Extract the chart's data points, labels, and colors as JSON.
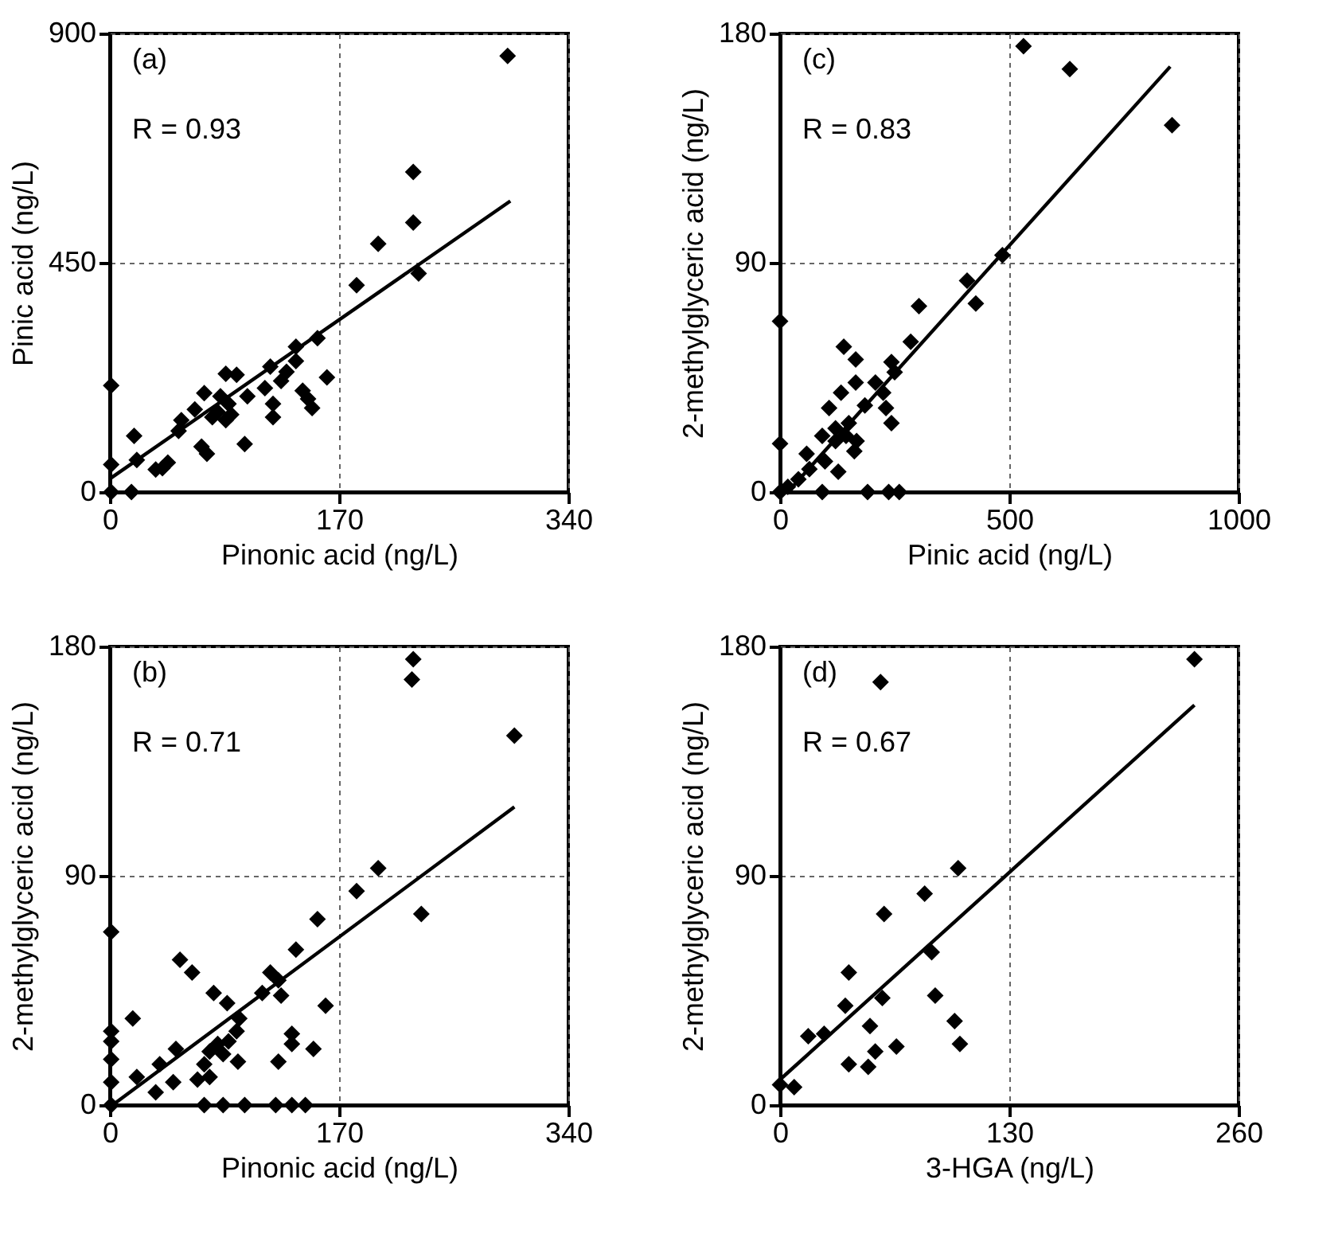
{
  "chart_data": [
    {
      "type": "scatter",
      "xlabel": "Pinonic acid (ng/L)",
      "ylabel": "Pinic acid (ng/L)",
      "xlim": [
        0,
        340
      ],
      "xticks": [
        0,
        170,
        340
      ],
      "ylim": [
        0,
        900
      ],
      "yticks": [
        0,
        450,
        900
      ],
      "grid": true,
      "line_style": "solid",
      "annotations": [
        "(a)",
        "R = 0.93"
      ],
      "series": [
        {
          "marker": "diamond",
          "color": "#000000",
          "x": [
            295,
            225,
            225,
            229,
            199,
            183,
            154,
            138,
            138,
            161,
            119,
            131,
            127,
            115,
            121,
            121,
            143,
            147,
            150,
            86,
            94,
            70,
            82,
            88,
            80,
            86,
            63,
            53,
            51,
            68,
            72,
            100,
            43,
            34,
            39,
            18,
            20,
            1,
            1,
            1,
            16,
            76,
            90,
            102
          ],
          "values": [
            856,
            628,
            529,
            429,
            487,
            406,
            302,
            285,
            257,
            225,
            246,
            236,
            218,
            204,
            173,
            147,
            199,
            183,
            165,
            232,
            230,
            194,
            188,
            173,
            157,
            141,
            162,
            141,
            120,
            89,
            75,
            94,
            58,
            44,
            47,
            110,
            63,
            209,
            54,
            0,
            0,
            147,
            152,
            188
          ]
        },
        {
          "type": "line",
          "marker": "none",
          "color": "#000000",
          "x": [
            0,
            297
          ],
          "values": [
            26,
            571
          ]
        }
      ]
    },
    {
      "type": "scatter",
      "xlabel": "Pinic acid (ng/L)",
      "ylabel": "2-methylglyceric acid (ng/L)",
      "xlim": [
        0,
        1000
      ],
      "xticks": [
        0,
        500,
        1000
      ],
      "ylim": [
        0,
        180
      ],
      "yticks": [
        0,
        90,
        180
      ],
      "grid": true,
      "line_style": "solid",
      "annotations": [
        "(c)",
        "R = 0.83"
      ],
      "series": [
        {
          "marker": "diamond",
          "color": "#000000",
          "x": [
            531,
            632,
            855,
            485,
            408,
            427,
            303,
            285,
            243,
            250,
            139,
            165,
            165,
            208,
            225,
            133,
            107,
            185,
            231,
            243,
            150,
            121,
            144,
            167,
            162,
            121,
            92,
            58,
            127,
            64,
            40,
            17,
            0,
            0,
            0,
            92,
            191,
            237,
            260,
            98
          ],
          "values": [
            175,
            166,
            144,
            93,
            83,
            74,
            73,
            59,
            51,
            47,
            57,
            52,
            43,
            43,
            39,
            39,
            33,
            34,
            33,
            27,
            27,
            25,
            22,
            20,
            16,
            20,
            22,
            15,
            8,
            9,
            5,
            2,
            67,
            19,
            0,
            0,
            0,
            0,
            0,
            12
          ]
        },
        {
          "type": "line",
          "marker": "none",
          "color": "#000000",
          "x": [
            17,
            851
          ],
          "values": [
            0,
            167
          ]
        }
      ]
    },
    {
      "type": "scatter",
      "xlabel": "Pinonic acid (ng/L)",
      "ylabel": "2-methylglyceric acid (ng/L)",
      "xlim": [
        0,
        340
      ],
      "xticks": [
        0,
        170,
        340
      ],
      "ylim": [
        0,
        180
      ],
      "yticks": [
        0,
        90,
        180
      ],
      "grid": true,
      "line_style": "solid",
      "annotations": [
        "(b)",
        "R = 0.71"
      ],
      "series": [
        {
          "marker": "diamond",
          "color": "#000000",
          "x": [
            225,
            224,
            300,
            199,
            183,
            231,
            154,
            138,
            52,
            61,
            119,
            125,
            113,
            127,
            77,
            87,
            160,
            96,
            94,
            88,
            80,
            74,
            84,
            95,
            70,
            65,
            74,
            135,
            135,
            151,
            125,
            49,
            37,
            47,
            20,
            34,
            17,
            1,
            1,
            1,
            1,
            1,
            1,
            70,
            84,
            100,
            123,
            135,
            145
          ],
          "values": [
            175,
            167,
            145,
            93,
            84,
            75,
            73,
            61,
            57,
            52,
            52,
            49,
            44,
            43,
            44,
            40,
            39,
            34,
            29,
            25,
            24,
            21,
            20,
            17,
            16,
            10,
            11,
            28,
            24,
            22,
            17,
            22,
            16,
            9,
            11,
            5,
            34,
            68,
            29,
            25,
            18,
            9,
            0,
            0,
            0,
            0,
            0,
            0,
            0
          ]
        },
        {
          "type": "line",
          "marker": "none",
          "color": "#000000",
          "x": [
            2,
            300
          ],
          "values": [
            0,
            117
          ]
        }
      ]
    },
    {
      "type": "scatter",
      "xlabel": "3-HGA (ng/L)",
      "ylabel": "2-methylglyceric acid (ng/L)",
      "xlim": [
        0,
        260
      ],
      "xticks": [
        0,
        130,
        260
      ],
      "ylim": [
        0,
        180
      ],
      "yticks": [
        0,
        90,
        180
      ],
      "grid": true,
      "line_style": "solid",
      "annotations": [
        "(d)",
        "R = 0.67"
      ],
      "series": [
        {
          "marker": "diamond",
          "color": "#000000",
          "x": [
            235,
            57,
            101,
            82,
            59,
            86,
            39,
            58,
            37,
            88,
            99,
            102,
            51,
            66,
            54,
            39,
            50,
            16,
            25,
            0,
            8
          ],
          "values": [
            175,
            166,
            93,
            83,
            75,
            60,
            52,
            42,
            39,
            43,
            33,
            24,
            31,
            23,
            21,
            16,
            15,
            27,
            28,
            8,
            7
          ]
        },
        {
          "type": "line",
          "marker": "none",
          "color": "#000000",
          "x": [
            0,
            235
          ],
          "values": [
            10,
            157
          ]
        }
      ]
    }
  ]
}
